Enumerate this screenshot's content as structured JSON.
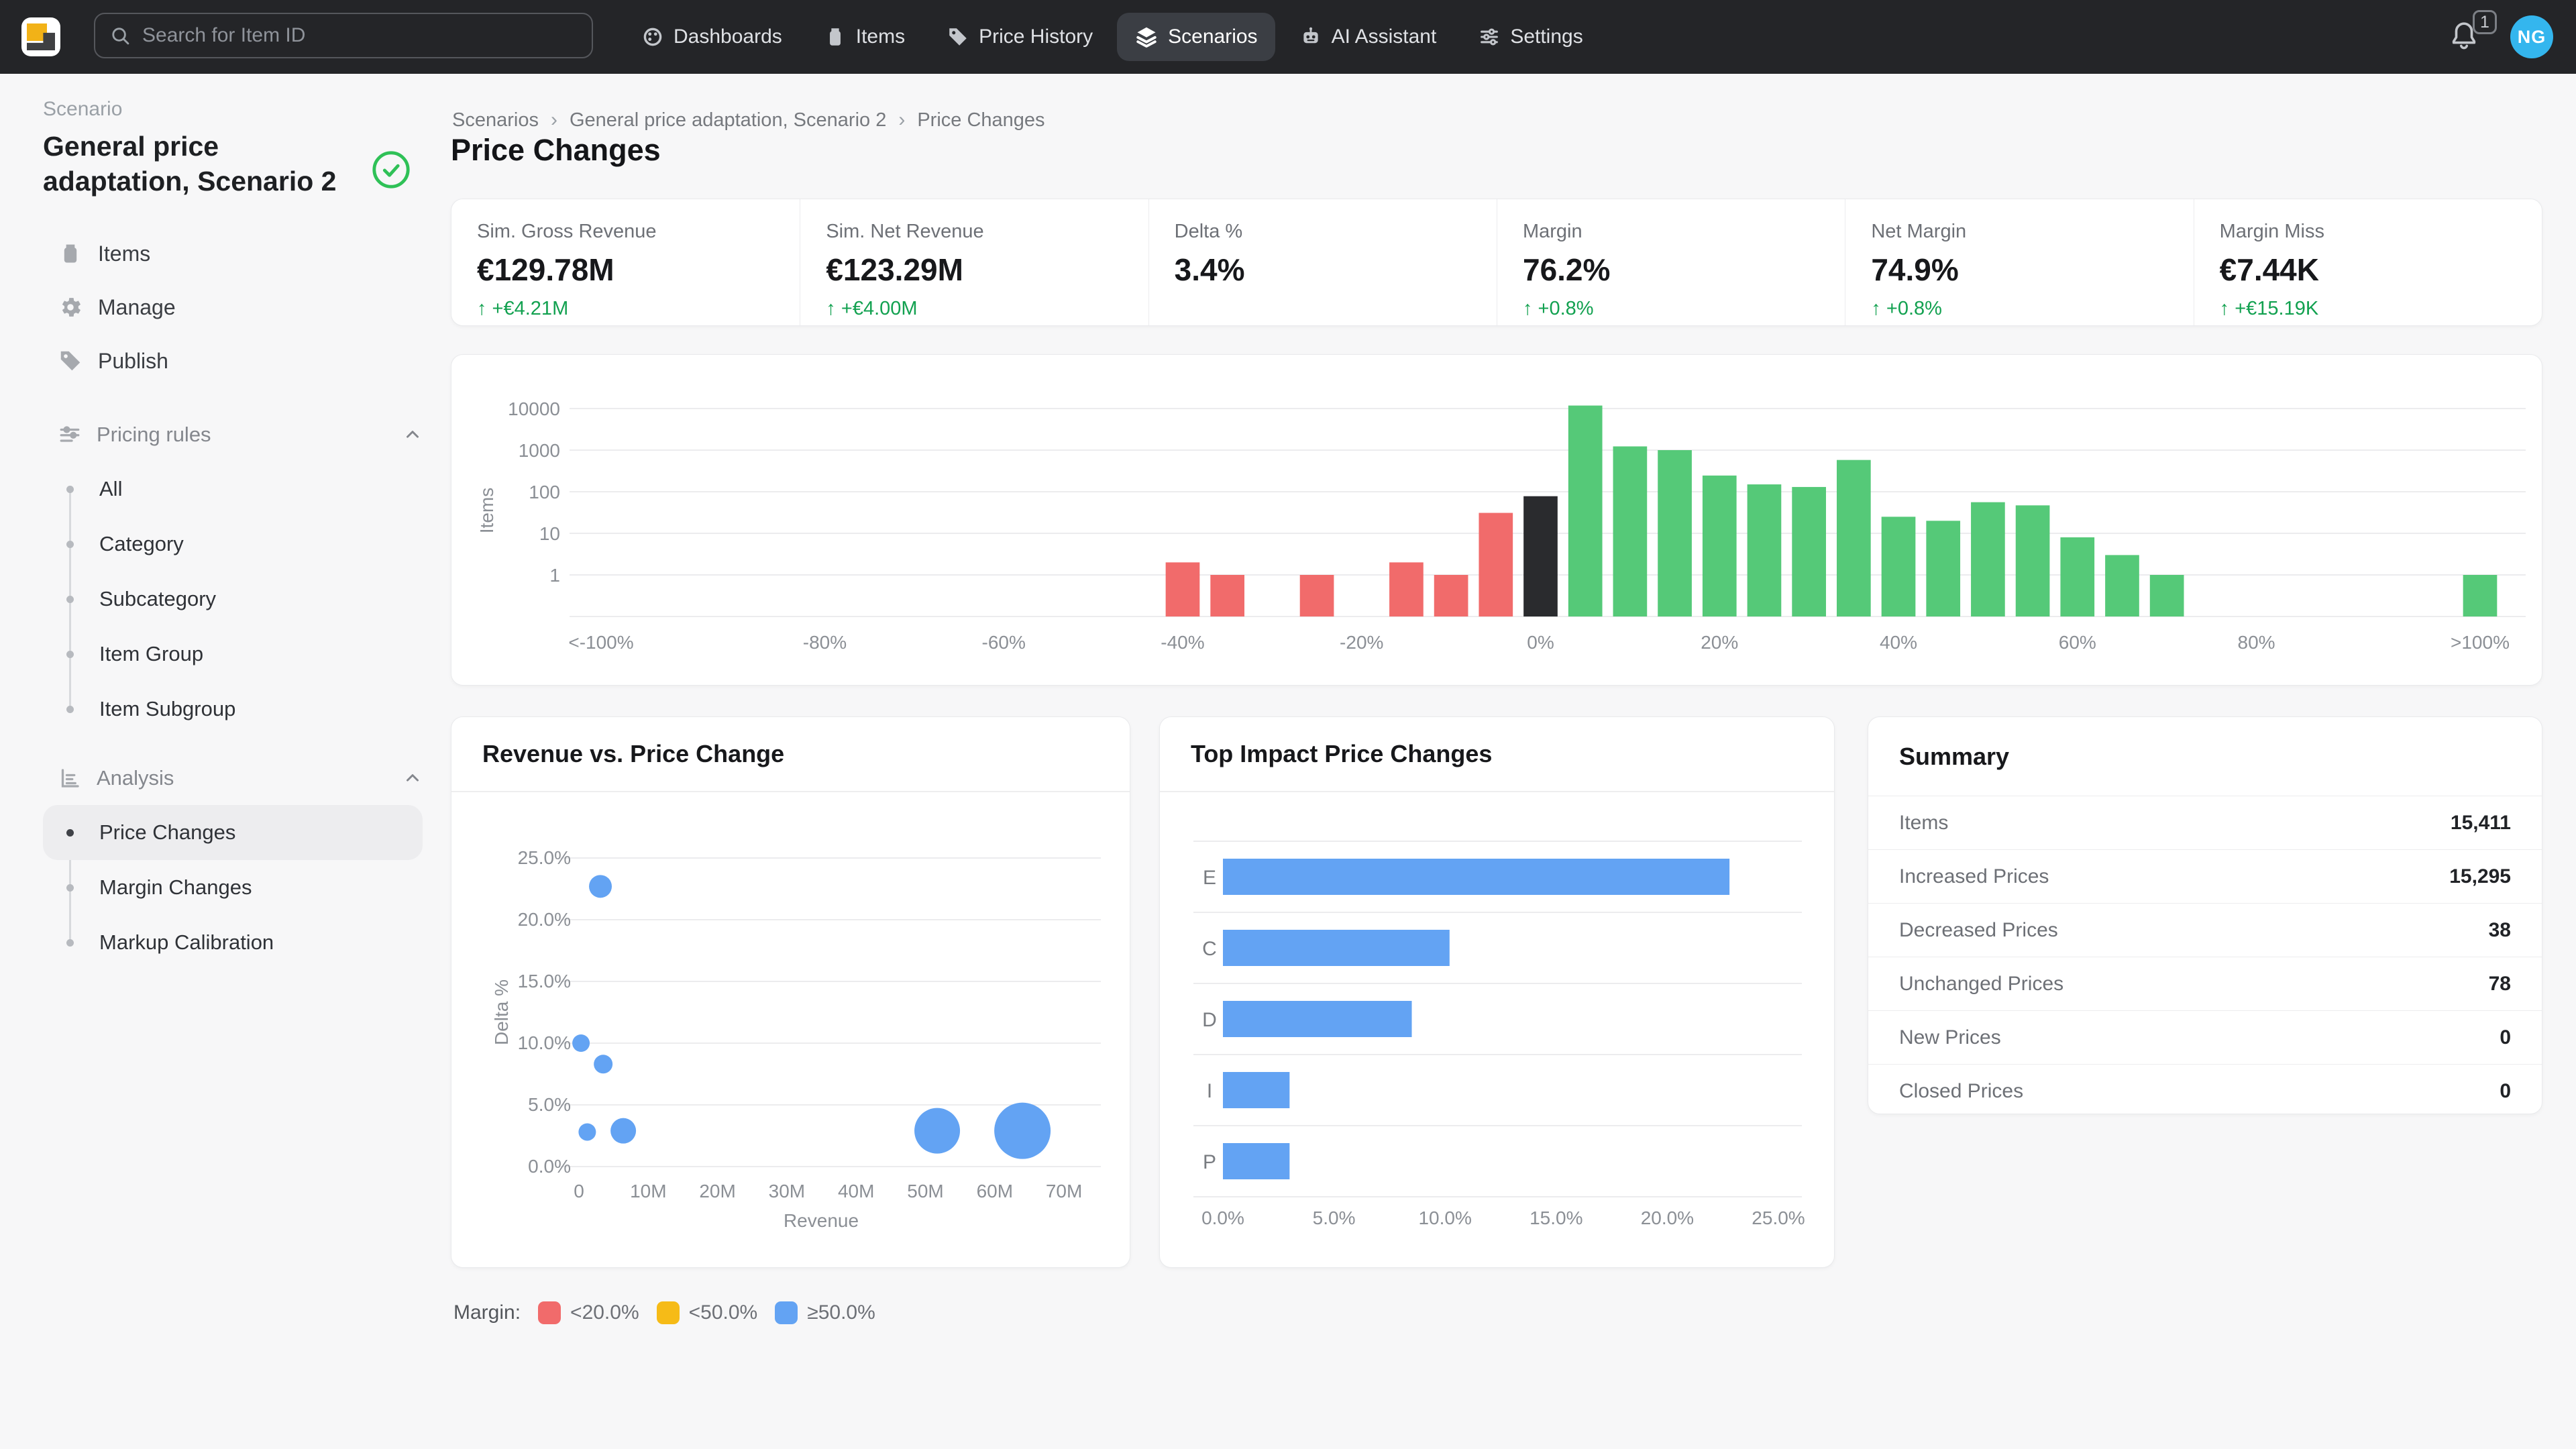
{
  "topbar": {
    "search": {
      "placeholder": "Search for Item ID"
    },
    "nav": [
      {
        "icon": "dashboards-icon",
        "label": "Dashboards",
        "active": false
      },
      {
        "icon": "items-icon",
        "label": "Items",
        "active": false
      },
      {
        "icon": "price-history-icon",
        "label": "Price History",
        "active": false
      },
      {
        "icon": "scenarios-icon",
        "label": "Scenarios",
        "active": true
      },
      {
        "icon": "ai-assistant-icon",
        "label": "AI Assistant",
        "active": false
      },
      {
        "icon": "settings-icon",
        "label": "Settings",
        "active": false
      }
    ],
    "notifications": {
      "count": "1"
    },
    "avatar": {
      "initials": "NG",
      "color": "#34b6ee"
    }
  },
  "sidebar": {
    "section_label": "Scenario",
    "scenario_title": "General price adaptation, Scenario 2",
    "scenario_status_icon": "check-circle-icon",
    "items": [
      {
        "icon": "box-icon",
        "label": "Items"
      },
      {
        "icon": "gear-icon",
        "label": "Manage"
      },
      {
        "icon": "tag-icon",
        "label": "Publish"
      }
    ],
    "groups": [
      {
        "icon": "sliders-icon",
        "label": "Pricing rules",
        "expanded": true,
        "children": [
          "All",
          "Category",
          "Subcategory",
          "Item Group",
          "Item Subgroup"
        ],
        "active_index": -1
      },
      {
        "icon": "bar-chart-icon",
        "label": "Analysis",
        "expanded": true,
        "children": [
          "Price Changes",
          "Margin Changes",
          "Markup Calibration"
        ],
        "active_index": 0
      }
    ]
  },
  "breadcrumb": {
    "items": [
      "Scenarios",
      "General price adaptation, Scenario 2",
      "Price Changes"
    ],
    "separator": "›"
  },
  "page": {
    "title": "Price Changes"
  },
  "kpis": [
    {
      "label": "Sim. Gross Revenue",
      "value": "€129.78M",
      "delta": "↑ +€4.21M"
    },
    {
      "label": "Sim. Net Revenue",
      "value": "€123.29M",
      "delta": "↑ +€4.00M"
    },
    {
      "label": "Delta %",
      "value": "3.4%",
      "delta": ""
    },
    {
      "label": "Margin",
      "value": "76.2%",
      "delta": "↑ +0.8%"
    },
    {
      "label": "Net Margin",
      "value": "74.9%",
      "delta": "↑ +0.8%"
    },
    {
      "label": "Margin Miss",
      "value": "€7.44K",
      "delta": "↑ +€15.19K"
    }
  ],
  "chart_data": [
    {
      "id": "price-change-histogram",
      "type": "bar",
      "title": "",
      "xlabel": "",
      "ylabel": "Items",
      "yscale": "log",
      "y_ticks": [
        1,
        10,
        100,
        1000,
        10000
      ],
      "x_domain": [
        -108,
        108
      ],
      "bar_width": 3.8,
      "x_ticks": [
        {
          "v": -105,
          "label": "<-100%"
        },
        {
          "v": -80,
          "label": "-80%"
        },
        {
          "v": -60,
          "label": "-60%"
        },
        {
          "v": -40,
          "label": "-40%"
        },
        {
          "v": -20,
          "label": "-20%"
        },
        {
          "v": 0,
          "label": "0%"
        },
        {
          "v": 20,
          "label": "20%"
        },
        {
          "v": 40,
          "label": "40%"
        },
        {
          "v": 60,
          "label": "60%"
        },
        {
          "v": 80,
          "label": "80%"
        },
        {
          "v": 105,
          "label": ">100%"
        }
      ],
      "bars": [
        {
          "x": -40,
          "items": 2,
          "color": "decrease"
        },
        {
          "x": -35,
          "items": 1,
          "color": "decrease"
        },
        {
          "x": -25,
          "items": 1,
          "color": "decrease"
        },
        {
          "x": -15,
          "items": 2,
          "color": "decrease"
        },
        {
          "x": -10,
          "items": 1,
          "color": "decrease"
        },
        {
          "x": -5,
          "items": 31,
          "color": "decrease"
        },
        {
          "x": 0,
          "items": 78,
          "color": "unchanged"
        },
        {
          "x": 5,
          "items": 11800,
          "color": "increase"
        },
        {
          "x": 10,
          "items": 1229,
          "color": "increase"
        },
        {
          "x": 15,
          "items": 1000,
          "color": "increase"
        },
        {
          "x": 20,
          "items": 245,
          "color": "increase"
        },
        {
          "x": 25,
          "items": 150,
          "color": "increase"
        },
        {
          "x": 30,
          "items": 130,
          "color": "increase"
        },
        {
          "x": 35,
          "items": 580,
          "color": "increase"
        },
        {
          "x": 40,
          "items": 25,
          "color": "increase"
        },
        {
          "x": 45,
          "items": 20,
          "color": "increase"
        },
        {
          "x": 50,
          "items": 56,
          "color": "increase"
        },
        {
          "x": 55,
          "items": 47,
          "color": "increase"
        },
        {
          "x": 60,
          "items": 8,
          "color": "increase"
        },
        {
          "x": 65,
          "items": 3,
          "color": "increase"
        },
        {
          "x": 70,
          "items": 1,
          "color": "increase"
        },
        {
          "x": 105,
          "items": 1,
          "color": "increase"
        }
      ],
      "colors": {
        "decrease": "#f16b6b",
        "unchanged": "#2a2b2e",
        "increase": "#55c978"
      }
    },
    {
      "id": "revenue-vs-price-change",
      "type": "scatter",
      "title": "Revenue vs. Price Change",
      "xlabel": "Revenue",
      "ylabel": "Delta %",
      "x_ticks": [
        {
          "v": 0,
          "label": "0"
        },
        {
          "v": 10,
          "label": "10M"
        },
        {
          "v": 20,
          "label": "20M"
        },
        {
          "v": 30,
          "label": "30M"
        },
        {
          "v": 40,
          "label": "40M"
        },
        {
          "v": 50,
          "label": "50M"
        },
        {
          "v": 60,
          "label": "60M"
        },
        {
          "v": 70,
          "label": "70M"
        }
      ],
      "y_ticks": [
        {
          "v": 0,
          "label": "0.0%"
        },
        {
          "v": 5,
          "label": "5.0%"
        },
        {
          "v": 10,
          "label": "10.0%"
        },
        {
          "v": 15,
          "label": "15.0%"
        },
        {
          "v": 20,
          "label": "20.0%"
        },
        {
          "v": 25,
          "label": "25.0%"
        }
      ],
      "points": [
        {
          "x": 3.1,
          "y": 22.7,
          "r": 17
        },
        {
          "x": 0.3,
          "y": 10.0,
          "r": 13
        },
        {
          "x": 3.5,
          "y": 8.3,
          "r": 14
        },
        {
          "x": 1.2,
          "y": 2.8,
          "r": 13
        },
        {
          "x": 6.4,
          "y": 2.9,
          "r": 19
        },
        {
          "x": 51.7,
          "y": 2.9,
          "r": 34
        },
        {
          "x": 64.0,
          "y": 2.9,
          "r": 42
        }
      ],
      "point_color": "#63a3f3"
    },
    {
      "id": "top-impact-price-changes",
      "type": "hbar",
      "title": "Top Impact Price Changes",
      "categories": [
        "E",
        "C",
        "D",
        "I",
        "P"
      ],
      "values": [
        22.8,
        10.2,
        8.5,
        3.0,
        3.0
      ],
      "x_ticks": [
        {
          "v": 0,
          "label": "0.0%"
        },
        {
          "v": 5,
          "label": "5.0%"
        },
        {
          "v": 10,
          "label": "10.0%"
        },
        {
          "v": 15,
          "label": "15.0%"
        },
        {
          "v": 20,
          "label": "20.0%"
        },
        {
          "v": 25,
          "label": "25.0%"
        }
      ],
      "bar_color": "#63a3f3"
    }
  ],
  "summary": {
    "title": "Summary",
    "rows": [
      {
        "label": "Items",
        "value": "15,411"
      },
      {
        "label": "Increased Prices",
        "value": "15,295"
      },
      {
        "label": "Decreased Prices",
        "value": "38"
      },
      {
        "label": "Unchanged Prices",
        "value": "78"
      },
      {
        "label": "New Prices",
        "value": "0"
      },
      {
        "label": "Closed Prices",
        "value": "0"
      }
    ]
  },
  "legend": {
    "label": "Margin:",
    "items": [
      {
        "swatch": "#f16b6b",
        "label": "<20.0%"
      },
      {
        "swatch": "#f6bb17",
        "label": "<50.0%"
      },
      {
        "swatch": "#63a3f3",
        "label": "≥50.0%"
      }
    ]
  }
}
